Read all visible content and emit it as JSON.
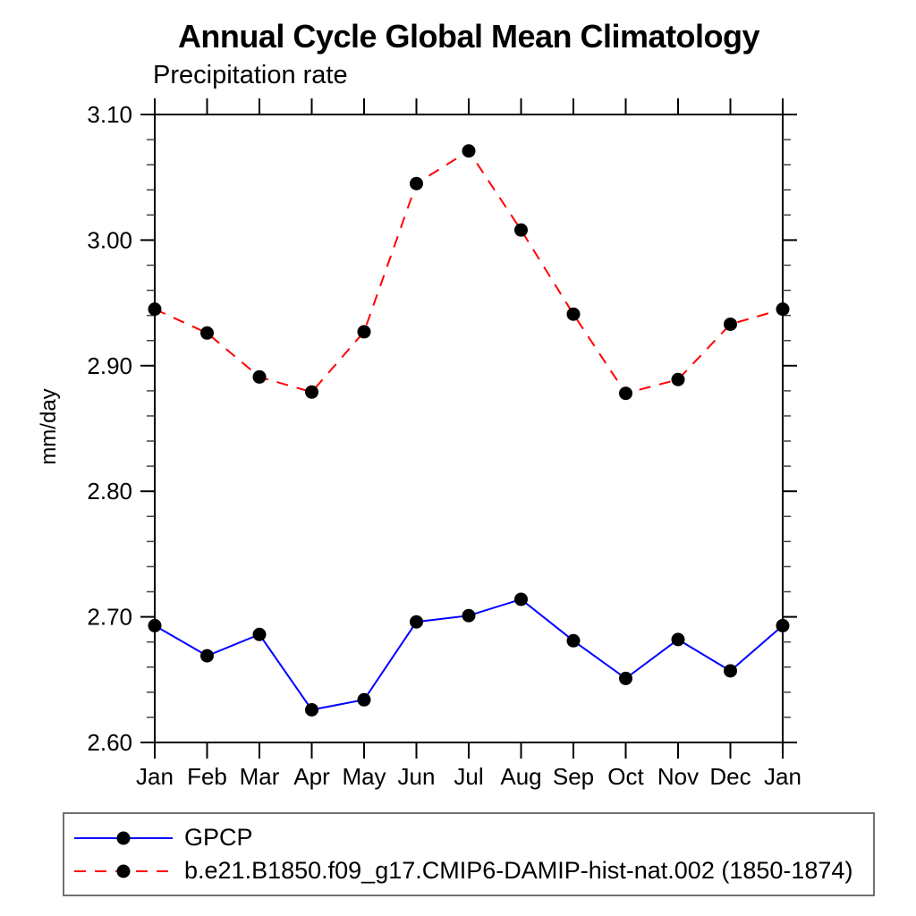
{
  "chart_data": {
    "type": "line",
    "title": "Annual Cycle Global Mean Climatology",
    "subtitle": "Precipitation rate",
    "ylabel": "mm/day",
    "xlabel": "",
    "x_tick_labels": [
      "Jan",
      "Feb",
      "Mar",
      "Apr",
      "May",
      "Jun",
      "Jul",
      "Aug",
      "Sep",
      "Oct",
      "Nov",
      "Dec",
      "Jan"
    ],
    "ylim": [
      2.6,
      3.1
    ],
    "y_major_step": 0.1,
    "y_minor_step": 0.02,
    "y_tick_labels": [
      "2.60",
      "2.70",
      "2.80",
      "2.90",
      "3.00",
      "3.10"
    ],
    "grid": false,
    "legend_position": "bottom-left boxed",
    "axis_color": "#000000",
    "marker_color": "#000000",
    "series": [
      {
        "name": "GPCP",
        "color": "#0000ff",
        "style": "solid",
        "marker": "filled-circle",
        "values": [
          2.693,
          2.669,
          2.686,
          2.626,
          2.634,
          2.696,
          2.701,
          2.714,
          2.681,
          2.651,
          2.682,
          2.657,
          2.693
        ]
      },
      {
        "name": "b.e21.B1850.f09_g17.CMIP6-DAMIP-hist-nat.002 (1850-1874)",
        "color": "#ff0000",
        "style": "dashed",
        "marker": "filled-circle",
        "values": [
          2.945,
          2.926,
          2.891,
          2.879,
          2.927,
          3.045,
          3.071,
          3.008,
          2.941,
          2.878,
          2.889,
          2.933,
          2.945
        ]
      }
    ]
  }
}
